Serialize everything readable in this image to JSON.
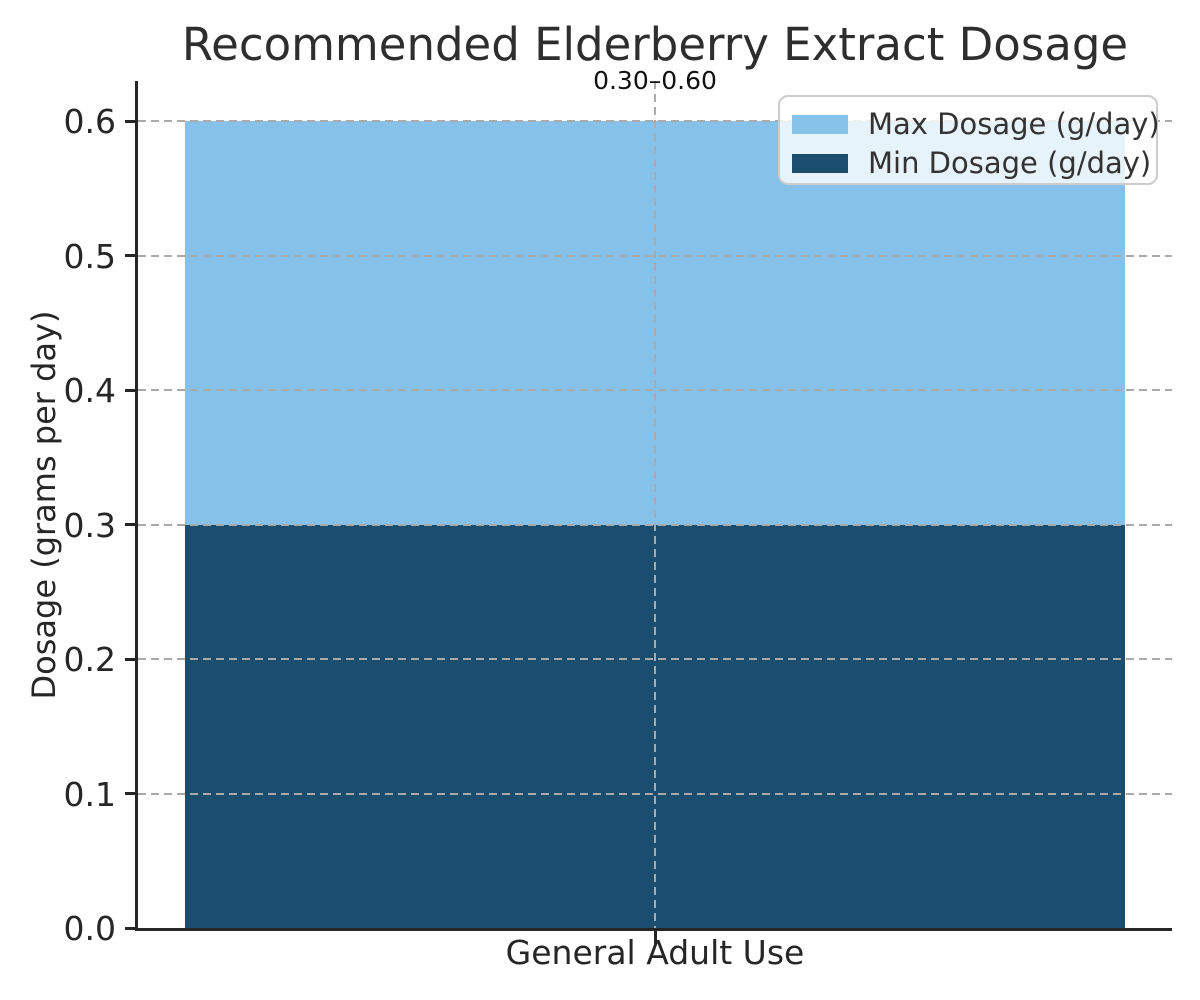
{
  "chart_data": {
    "type": "bar",
    "title": "Recommended Elderberry Extract Dosage",
    "ylabel": "Dosage (grams per day)",
    "xlabel": "",
    "categories": [
      "General Adult Use"
    ],
    "series": [
      {
        "name": "Max Dosage (g/day)",
        "values": [
          0.6
        ],
        "color": "#86C1E9"
      },
      {
        "name": "Min Dosage (g/day)",
        "values": [
          0.3
        ],
        "color": "#1B4D6E"
      }
    ],
    "annotation": "0.30–0.60",
    "ylim": [
      0,
      0.63
    ],
    "yticks": [
      0.0,
      0.1,
      0.2,
      0.3,
      0.4,
      0.5,
      0.6
    ],
    "ytick_format_decimals": 1,
    "grid": "dashed",
    "grid_color": "#aaaaaa",
    "spine_color": "#262626",
    "text_color": "#262626",
    "legend_position": "upper right"
  }
}
